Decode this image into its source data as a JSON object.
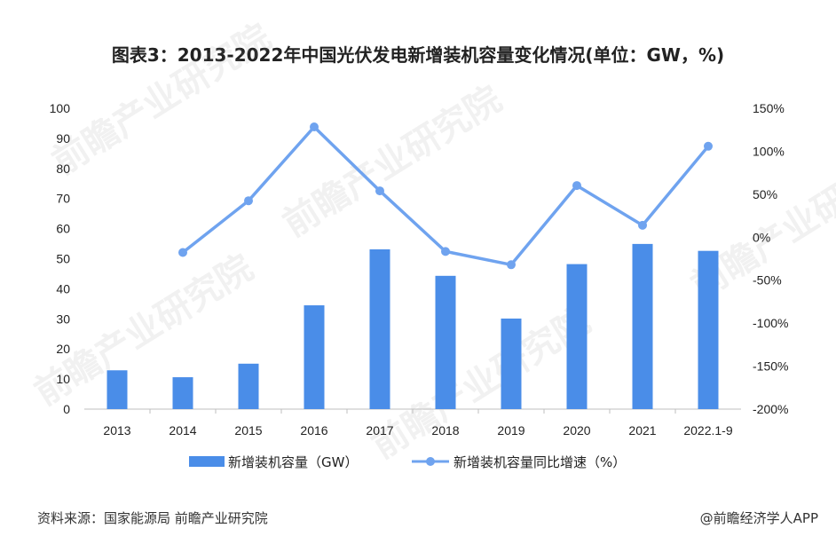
{
  "title": "图表3：2013-2022年中国光伏发电新增装机容量变化情况(单位：GW，%)",
  "source": "资料来源：国家能源局 前瞻产业研究院",
  "credit": "@前瞻经济学人APP",
  "watermark": "前瞻产业研究院",
  "colors": {
    "bar": "#4a8de8",
    "line": "#6fa3ef",
    "axis": "#bfbfbf"
  },
  "chart_data": {
    "type": "bar",
    "categories": [
      "2013",
      "2014",
      "2015",
      "2016",
      "2017",
      "2018",
      "2019",
      "2020",
      "2021",
      "2022.1-9"
    ],
    "series": [
      {
        "name": "新增装机容量（GW）",
        "type": "bar",
        "axis": "left",
        "values": [
          12.9,
          10.6,
          15.1,
          34.5,
          53.1,
          44.3,
          30.1,
          48.2,
          54.9,
          52.6
        ]
      },
      {
        "name": "新增装机容量同比增速（%）",
        "type": "line",
        "axis": "right",
        "values": [
          null,
          -17.8,
          42.4,
          128.3,
          53.9,
          -16.6,
          -32.0,
          60.1,
          13.9,
          105.8
        ]
      }
    ],
    "left_axis": {
      "ylim": [
        0,
        100
      ],
      "ticks": [
        "0",
        "10",
        "20",
        "30",
        "40",
        "50",
        "60",
        "70",
        "80",
        "90",
        "100"
      ]
    },
    "right_axis": {
      "ylim": [
        -200,
        150
      ],
      "ticks": [
        "-200%",
        "-150%",
        "-100%",
        "-50%",
        "0%",
        "50%",
        "100%",
        "150%"
      ]
    },
    "grid": false,
    "legend": "bottom"
  }
}
